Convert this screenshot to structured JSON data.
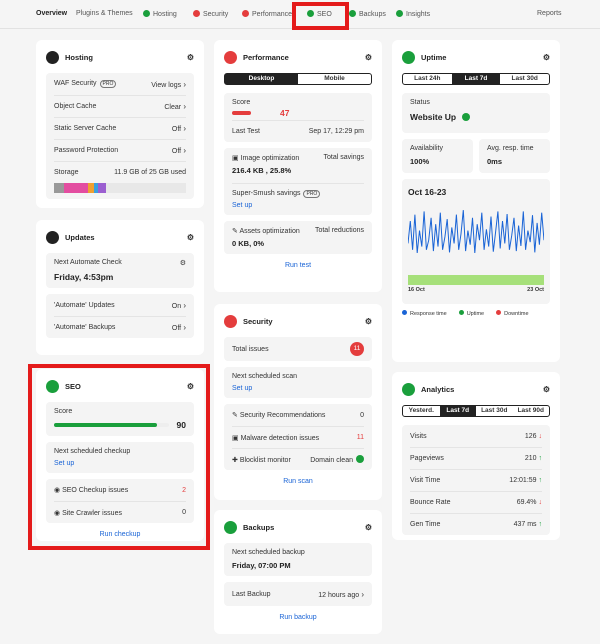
{
  "nav": {
    "tabs": [
      "Overview",
      "Plugins & Themes",
      "Hosting",
      "Security",
      "Performance",
      "SEO",
      "Backups",
      "Insights"
    ],
    "reports": "Reports"
  },
  "hosting": {
    "title": "Hosting",
    "rows": [
      {
        "label": "WAF Security",
        "badge": "PRO",
        "value": "View logs"
      },
      {
        "label": "Object Cache",
        "value": "Clear"
      },
      {
        "label": "Static Server Cache",
        "value": "Off"
      },
      {
        "label": "Password Protection",
        "value": "Off"
      }
    ],
    "storage": {
      "label": "Storage",
      "value": "11.9 GB of 25 GB used"
    }
  },
  "updates": {
    "title": "Updates",
    "next_label": "Next Automate Check",
    "next_value": "Friday, 4:53pm",
    "rows": [
      {
        "label": "'Automate' Updates",
        "value": "On"
      },
      {
        "label": "'Automate' Backups",
        "value": "Off"
      }
    ]
  },
  "seo": {
    "title": "SEO",
    "score_label": "Score",
    "score": 90,
    "next_label": "Next scheduled checkup",
    "setup": "Set up",
    "rows": [
      {
        "label": "SEO Checkup issues",
        "value": 2
      },
      {
        "label": "Site Crawler issues",
        "value": 0
      }
    ],
    "action": "Run checkup"
  },
  "performance": {
    "title": "Performance",
    "modes": [
      "Desktop",
      "Mobile"
    ],
    "score_label": "Score",
    "score": 47,
    "last_test_label": "Last Test",
    "last_test": "Sep 17, 12:29 pm",
    "image": {
      "label": "Image optimization",
      "value_label": "Total savings",
      "value": "216.4 KB , 25.8%"
    },
    "smush": {
      "label": "Super-Smush savings",
      "badge": "PRO",
      "link": "Set up"
    },
    "assets": {
      "label": "Assets optimization",
      "value_label": "Total reductions",
      "value": "0 KB, 0%"
    },
    "action": "Run test"
  },
  "security": {
    "title": "Security",
    "total_label": "Total issues",
    "total": 11,
    "next_label": "Next scheduled scan",
    "setup": "Set up",
    "rows": [
      {
        "label": "Security Recommendations",
        "value": 0
      },
      {
        "label": "Malware detection issues",
        "value": 11
      },
      {
        "label": "Blocklist monitor",
        "value": "Domain clean"
      }
    ],
    "action": "Run scan"
  },
  "backups": {
    "title": "Backups",
    "next_label": "Next scheduled backup",
    "next_value": "Friday, 07:00 PM",
    "last_label": "Last Backup",
    "last_value": "12 hours ago",
    "action": "Run backup"
  },
  "uptime": {
    "title": "Uptime",
    "ranges": [
      "Last 24h",
      "Last 7d",
      "Last 30d"
    ],
    "status_label": "Status",
    "status": "Website Up",
    "availability_label": "Availability",
    "availability": "100%",
    "resp_label": "Avg. resp. time",
    "resp": "0ms",
    "period": "Oct 16-23",
    "chart": {
      "values": [
        40,
        75,
        30,
        85,
        25,
        60,
        35,
        90,
        30,
        45,
        80,
        28,
        70,
        35,
        88,
        30,
        50,
        78,
        26,
        65,
        40,
        85,
        30,
        55,
        92,
        28,
        60,
        38,
        80,
        25,
        70,
        45,
        88,
        30,
        62,
        35,
        82,
        27,
        58,
        90,
        32,
        75,
        40,
        86,
        30,
        52,
        80,
        28,
        68,
        36,
        90,
        30,
        60,
        42,
        84,
        26,
        72,
        38,
        88,
        45
      ],
      "x_start": "16 Oct",
      "x_end": "23 Oct"
    },
    "legend": [
      "Response time",
      "Uptime",
      "Downtime"
    ]
  },
  "analytics": {
    "title": "Analytics",
    "ranges": [
      "Yesterd.",
      "Last 7d",
      "Last 30d",
      "Last 90d"
    ],
    "rows": [
      {
        "label": "Visits",
        "value": 126,
        "trend": "down"
      },
      {
        "label": "Pageviews",
        "value": 210,
        "trend": "up"
      },
      {
        "label": "Visit Time",
        "value": "12:01:59",
        "trend": "up"
      },
      {
        "label": "Bounce Rate",
        "value": "69.4%",
        "trend": "down"
      },
      {
        "label": "Gen Time",
        "value": "437 ms",
        "trend": "up"
      }
    ]
  }
}
